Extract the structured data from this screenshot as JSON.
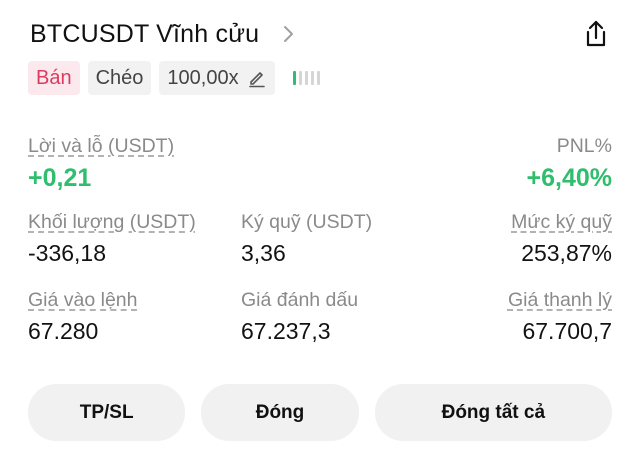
{
  "header": {
    "title": "BTCUSDT Vĩnh cửu"
  },
  "tags": {
    "side": "Bán",
    "margin_mode": "Chéo",
    "leverage": "100,00x"
  },
  "stats": {
    "pnl_label": "Lời và lỗ (USDT)",
    "pnl_value": "+0,21",
    "pnl_pct_label": "PNL%",
    "pnl_pct_value": "+6,40%",
    "volume_label": "Khối lượng (USDT)",
    "volume_value": "-336,18",
    "margin_label": "Ký quỹ (USDT)",
    "margin_value": "3,36",
    "margin_level_label": "Mức ký quỹ",
    "margin_level_value": "253,87%",
    "entry_label": "Giá vào lệnh",
    "entry_value": "67.280",
    "mark_label": "Giá đánh dấu",
    "mark_value": "67.237,3",
    "liq_label": "Giá thanh lý",
    "liq_value": "67.700,7"
  },
  "buttons": {
    "tpsl": "TP/SL",
    "close": "Đóng",
    "close_all": "Đóng tất cả"
  },
  "colors": {
    "profit": "#2fbd6e",
    "sell": "#dc3b60"
  },
  "icons": [
    "chevron-right-icon",
    "share-icon",
    "edit-pencil-icon",
    "risk-meter-icon"
  ]
}
